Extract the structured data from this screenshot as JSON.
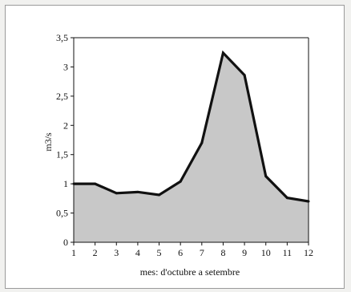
{
  "chart_data": {
    "type": "area",
    "xlabel": "mes: d'octubre a setembre",
    "ylabel": "m3/s",
    "x": [
      1,
      2,
      3,
      4,
      5,
      6,
      7,
      8,
      9,
      10,
      11,
      12
    ],
    "values": [
      1.0,
      1.0,
      0.84,
      0.86,
      0.81,
      1.04,
      1.7,
      3.24,
      2.86,
      1.13,
      0.76,
      0.7
    ],
    "xlim": [
      1,
      12
    ],
    "ylim": [
      0,
      3.5
    ],
    "x_ticks": [
      "1",
      "2",
      "3",
      "4",
      "5",
      "6",
      "7",
      "8",
      "9",
      "10",
      "11",
      "12"
    ],
    "y_ticks": [
      "0",
      "0,5",
      "1",
      "1,5",
      "2",
      "2,5",
      "3",
      "3,5"
    ],
    "grid": false,
    "colors": {
      "fill": "#c8c8c8",
      "line": "#111111",
      "plot_bg": "#ffffff",
      "frame": "#9a9a9a"
    }
  }
}
